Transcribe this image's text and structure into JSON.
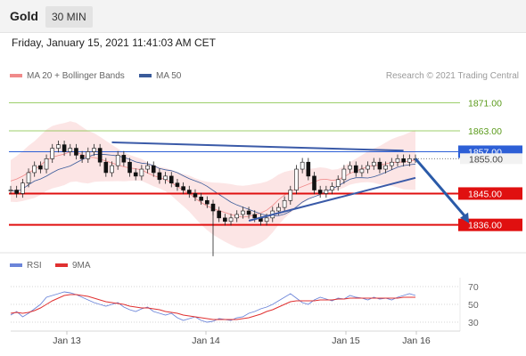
{
  "header": {
    "title": "Gold",
    "timeframe": "30 MIN"
  },
  "datetime": "Friday, January 15, 2021 11:41:03 AM CET",
  "credit": "Research © 2021 Trading Central",
  "colors": {
    "bollinger": "#f08a8a",
    "ma50": "#3a5b9a",
    "resistance": "#7bbf3a",
    "support": "#e01010",
    "current": "#2d5fd6",
    "rsi": "#6b85d9",
    "rsi_ma": "#e03030"
  },
  "chart_data": [
    {
      "type": "line",
      "title": "",
      "legend": [
        {
          "name": "MA 20 + Bollinger Bands",
          "color": "#f08a8a"
        },
        {
          "name": "MA 50",
          "color": "#3a5b9a"
        }
      ],
      "ylim": [
        1828,
        1875
      ],
      "x_ticks": [
        "Jan 13",
        "Jan 14",
        "Jan 15",
        "Jan 16"
      ],
      "levels": [
        {
          "value": 1871.0,
          "label": "1871.00",
          "kind": "resistance"
        },
        {
          "value": 1863.0,
          "label": "1863.00",
          "kind": "resistance"
        },
        {
          "value": 1857.0,
          "label": "1857.00",
          "kind": "current"
        },
        {
          "value": 1855.0,
          "label": "1855.00",
          "kind": "hidden"
        },
        {
          "value": 1845.0,
          "label": "1845.00",
          "kind": "support"
        },
        {
          "value": 1836.0,
          "label": "1836.00",
          "kind": "support"
        }
      ],
      "price": [
        1846,
        1845,
        1848,
        1851,
        1853,
        1852,
        1855,
        1858,
        1859,
        1857,
        1858,
        1856,
        1855,
        1857,
        1858,
        1854,
        1851,
        1853,
        1856,
        1854,
        1851,
        1850,
        1852,
        1853,
        1851,
        1849,
        1850,
        1848,
        1847,
        1846,
        1845,
        1844,
        1843,
        1842,
        1840,
        1838,
        1837,
        1838,
        1839,
        1840,
        1839,
        1838,
        1837,
        1838,
        1840,
        1841,
        1843,
        1846,
        1852,
        1854,
        1850,
        1846,
        1845,
        1846,
        1847,
        1849,
        1852,
        1853,
        1851,
        1852,
        1853,
        1854,
        1852,
        1853,
        1854,
        1855,
        1854,
        1855,
        1855
      ],
      "lows": [
        {
          "index": 34,
          "value": 1827
        }
      ],
      "trendlines": [
        {
          "from": {
            "index": 17,
            "value": 1859.7
          },
          "to": {
            "index": 66,
            "value": 1857.3
          }
        },
        {
          "from": {
            "index": 40,
            "value": 1837.2
          },
          "to": {
            "index": 68,
            "value": 1849.5
          }
        }
      ],
      "projection": {
        "from": {
          "index": 68,
          "value": 1855
        },
        "to": {
          "index": 77,
          "value": 1836.5
        }
      }
    },
    {
      "type": "line",
      "title": "",
      "legend": [
        {
          "name": "RSI",
          "color": "#6b85d9"
        },
        {
          "name": "9MA",
          "color": "#e03030"
        }
      ],
      "ylim": [
        20,
        80
      ],
      "y_ticks": [
        70,
        50,
        30
      ],
      "rsi": [
        38,
        42,
        36,
        40,
        45,
        50,
        58,
        60,
        62,
        64,
        63,
        61,
        58,
        55,
        52,
        50,
        48,
        50,
        52,
        47,
        44,
        42,
        45,
        47,
        42,
        40,
        38,
        40,
        35,
        32,
        34,
        36,
        32,
        30,
        31,
        34,
        33,
        32,
        35,
        36,
        40,
        42,
        45,
        47,
        50,
        54,
        58,
        62,
        57,
        52,
        50,
        55,
        58,
        56,
        54,
        57,
        56,
        60,
        58,
        57,
        55,
        58,
        56,
        57,
        55,
        58,
        60,
        62,
        60
      ],
      "rsi_ma": [
        40,
        41,
        40,
        41,
        43,
        46,
        50,
        54,
        57,
        60,
        61,
        61,
        60,
        59,
        57,
        55,
        53,
        52,
        51,
        50,
        48,
        47,
        46,
        46,
        45,
        44,
        42,
        41,
        40,
        38,
        37,
        36,
        35,
        34,
        33,
        33,
        33,
        33,
        33,
        34,
        35,
        37,
        39,
        42,
        44,
        47,
        50,
        53,
        54,
        54,
        54,
        54,
        55,
        55,
        55,
        56,
        56,
        57,
        57,
        57,
        57,
        57,
        57,
        57,
        57,
        57,
        58,
        58,
        58
      ]
    }
  ],
  "legend1": {
    "ma20": "MA 20 + Bollinger Bands",
    "ma50": "MA 50"
  },
  "legend2": {
    "rsi": "RSI",
    "ma9": "9MA"
  }
}
